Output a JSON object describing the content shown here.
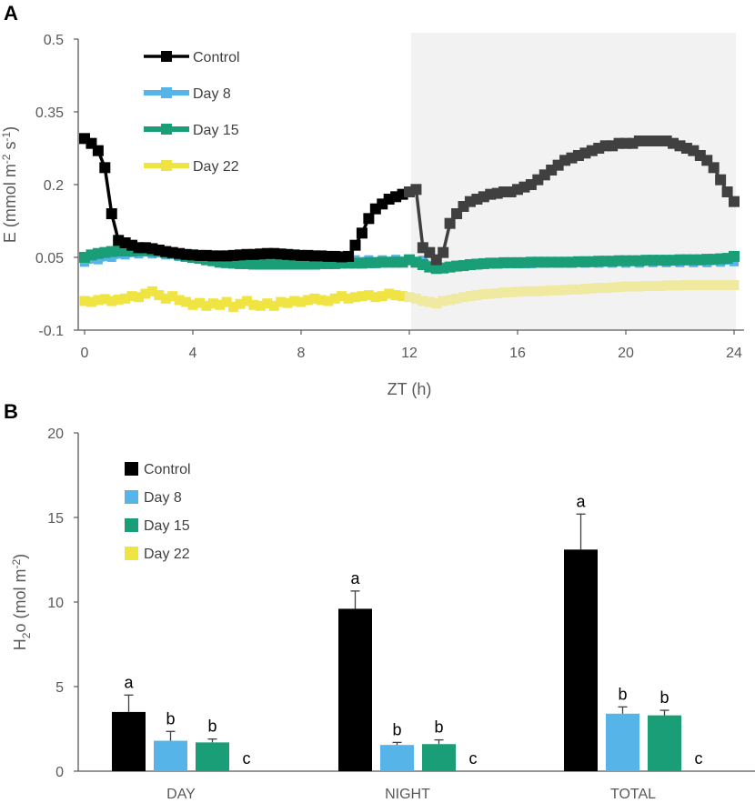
{
  "colors": {
    "control": "#000000",
    "control_dark": "#404040",
    "day8": "#56b4e9",
    "day15": "#1a9e77",
    "day22": "#f0e442",
    "day22_dark": "#f0e9a0",
    "shade": "#f2f2f2",
    "axis": "#595959"
  },
  "chart_data": [
    {
      "type": "line",
      "panel_label": "A",
      "xlabel": "ZT (h)",
      "ylabel": "E (mmol m-2 s-1)",
      "ylabel_parts": {
        "base": "E (mmol m",
        "exp1": "-2",
        "mid": " s",
        "exp2": "-1",
        "end": ")"
      },
      "xlim": [
        0,
        24
      ],
      "ylim": [
        -0.1,
        0.5
      ],
      "xticks": [
        "0",
        "4",
        "8",
        "12",
        "16",
        "20",
        "24"
      ],
      "yticks": [
        "-0.1",
        "0.05",
        "0.2",
        "0.35",
        "0.5"
      ],
      "shaded_region_zt": [
        12,
        24
      ],
      "legend": [
        "Control",
        "Day 8",
        "Day 15",
        "Day 22"
      ],
      "series": [
        {
          "name": "Control",
          "x": [
            0,
            0.25,
            0.5,
            0.75,
            1,
            1.25,
            1.5,
            1.75,
            2,
            2.25,
            2.5,
            2.75,
            3,
            3.25,
            3.5,
            3.75,
            4,
            4.25,
            4.5,
            4.75,
            5,
            5.25,
            5.5,
            5.75,
            6,
            6.25,
            6.5,
            6.75,
            7,
            7.25,
            7.5,
            7.75,
            8,
            8.25,
            8.5,
            8.75,
            9,
            9.25,
            9.5,
            9.75,
            10,
            10.25,
            10.5,
            10.75,
            11,
            11.25,
            11.5,
            11.75,
            12,
            12.25,
            12.5,
            12.75,
            13,
            13.25,
            13.5,
            13.75,
            14,
            14.25,
            14.5,
            14.75,
            15,
            15.25,
            15.5,
            15.75,
            16,
            16.25,
            16.5,
            16.75,
            17,
            17.25,
            17.5,
            17.75,
            18,
            18.25,
            18.5,
            18.75,
            19,
            19.25,
            19.5,
            19.75,
            20,
            20.25,
            20.5,
            20.75,
            21,
            21.25,
            21.5,
            21.75,
            22,
            22.25,
            22.5,
            22.75,
            23,
            23.25,
            23.5,
            23.75,
            24
          ],
          "y": [
            0.295,
            0.285,
            0.27,
            0.235,
            0.14,
            0.085,
            0.08,
            0.075,
            0.07,
            0.07,
            0.068,
            0.065,
            0.062,
            0.06,
            0.058,
            0.056,
            0.055,
            0.054,
            0.054,
            0.053,
            0.053,
            0.053,
            0.054,
            0.055,
            0.056,
            0.056,
            0.057,
            0.058,
            0.058,
            0.057,
            0.056,
            0.055,
            0.054,
            0.054,
            0.053,
            0.053,
            0.052,
            0.052,
            0.051,
            0.052,
            0.075,
            0.1,
            0.13,
            0.15,
            0.16,
            0.17,
            0.175,
            0.18,
            0.185,
            0.19,
            0.07,
            0.06,
            0.045,
            0.06,
            0.12,
            0.14,
            0.155,
            0.165,
            0.17,
            0.175,
            0.18,
            0.182,
            0.185,
            0.185,
            0.19,
            0.195,
            0.2,
            0.21,
            0.22,
            0.23,
            0.24,
            0.25,
            0.255,
            0.26,
            0.265,
            0.27,
            0.275,
            0.28,
            0.28,
            0.285,
            0.285,
            0.285,
            0.29,
            0.29,
            0.29,
            0.29,
            0.29,
            0.285,
            0.28,
            0.275,
            0.27,
            0.26,
            0.25,
            0.235,
            0.21,
            0.185,
            0.165
          ]
        },
        {
          "name": "Day 8",
          "x": [
            0,
            0.5,
            1,
            1.5,
            2,
            2.5,
            3,
            3.5,
            4,
            4.5,
            5,
            5.5,
            6,
            6.5,
            7,
            7.5,
            8,
            8.5,
            9,
            9.5,
            10,
            10.5,
            11,
            11.5,
            12,
            12.5,
            13,
            13.5,
            14,
            14.5,
            15,
            15.5,
            16,
            16.5,
            17,
            17.5,
            18,
            18.5,
            19,
            19.5,
            20,
            20.5,
            21,
            21.5,
            22,
            22.5,
            23,
            23.5,
            24
          ],
          "y": [
            0.04,
            0.045,
            0.05,
            0.055,
            0.057,
            0.057,
            0.055,
            0.052,
            0.05,
            0.047,
            0.045,
            0.043,
            0.042,
            0.042,
            0.042,
            0.042,
            0.043,
            0.043,
            0.044,
            0.044,
            0.045,
            0.045,
            0.045,
            0.046,
            0.046,
            0.044,
            0.03,
            0.032,
            0.035,
            0.036,
            0.037,
            0.037,
            0.037,
            0.037,
            0.038,
            0.038,
            0.038,
            0.038,
            0.038,
            0.038,
            0.038,
            0.038,
            0.039,
            0.039,
            0.039,
            0.039,
            0.039,
            0.04,
            0.041
          ]
        },
        {
          "name": "Day 15",
          "x": [
            0,
            0.25,
            0.5,
            0.75,
            1,
            1.25,
            1.5,
            1.75,
            2,
            2.25,
            2.5,
            2.75,
            3,
            3.25,
            3.5,
            3.75,
            4,
            4.25,
            4.5,
            4.75,
            5,
            5.25,
            5.5,
            5.75,
            6,
            6.25,
            6.5,
            6.75,
            7,
            7.25,
            7.5,
            7.75,
            8,
            8.25,
            8.5,
            8.75,
            9,
            9.25,
            9.5,
            9.75,
            10,
            10.25,
            10.5,
            10.75,
            11,
            11.25,
            11.5,
            11.75,
            12,
            12.25,
            12.5,
            12.75,
            13,
            13.25,
            13.5,
            13.75,
            14,
            14.25,
            14.5,
            14.75,
            15,
            15.25,
            15.5,
            15.75,
            16,
            16.25,
            16.5,
            16.75,
            17,
            17.25,
            17.5,
            17.75,
            18,
            18.25,
            18.5,
            18.75,
            19,
            19.25,
            19.5,
            19.75,
            20,
            20.25,
            20.5,
            20.75,
            21,
            21.25,
            21.5,
            21.75,
            22,
            22.25,
            22.5,
            22.75,
            23,
            23.25,
            23.5,
            23.75,
            24
          ],
          "y": [
            0.05,
            0.055,
            0.058,
            0.06,
            0.062,
            0.063,
            0.063,
            0.063,
            0.064,
            0.064,
            0.063,
            0.062,
            0.06,
            0.058,
            0.055,
            0.052,
            0.05,
            0.048,
            0.045,
            0.043,
            0.04,
            0.039,
            0.038,
            0.037,
            0.037,
            0.036,
            0.036,
            0.036,
            0.036,
            0.036,
            0.036,
            0.036,
            0.036,
            0.036,
            0.036,
            0.037,
            0.037,
            0.037,
            0.038,
            0.038,
            0.038,
            0.038,
            0.039,
            0.039,
            0.04,
            0.04,
            0.04,
            0.04,
            0.045,
            0.04,
            0.035,
            0.03,
            0.027,
            0.028,
            0.03,
            0.032,
            0.033,
            0.035,
            0.036,
            0.037,
            0.038,
            0.038,
            0.039,
            0.039,
            0.039,
            0.039,
            0.04,
            0.04,
            0.04,
            0.04,
            0.04,
            0.04,
            0.04,
            0.041,
            0.041,
            0.041,
            0.042,
            0.042,
            0.042,
            0.043,
            0.043,
            0.043,
            0.043,
            0.044,
            0.044,
            0.044,
            0.044,
            0.044,
            0.045,
            0.045,
            0.045,
            0.045,
            0.046,
            0.046,
            0.047,
            0.048,
            0.052
          ]
        },
        {
          "name": "Day 22",
          "x": [
            0,
            0.25,
            0.5,
            0.75,
            1,
            1.25,
            1.5,
            1.75,
            2,
            2.25,
            2.5,
            2.75,
            3,
            3.25,
            3.5,
            3.75,
            4,
            4.25,
            4.5,
            4.75,
            5,
            5.25,
            5.5,
            5.75,
            6,
            6.25,
            6.5,
            6.75,
            7,
            7.25,
            7.5,
            7.75,
            8,
            8.25,
            8.5,
            8.75,
            9,
            9.25,
            9.5,
            9.75,
            10,
            10.25,
            10.5,
            10.75,
            11,
            11.25,
            11.5,
            11.75,
            12,
            12.25,
            12.5,
            12.75,
            13,
            13.25,
            13.5,
            13.75,
            14,
            14.25,
            14.5,
            14.75,
            15,
            15.25,
            15.5,
            15.75,
            16,
            16.25,
            16.5,
            16.75,
            17,
            17.25,
            17.5,
            17.75,
            18,
            18.25,
            18.5,
            18.75,
            19,
            19.25,
            19.5,
            19.75,
            20,
            20.25,
            20.5,
            20.75,
            21,
            21.25,
            21.5,
            21.75,
            22,
            22.25,
            22.5,
            22.75,
            23,
            23.25,
            23.5,
            23.75,
            24
          ],
          "y": [
            -0.04,
            -0.042,
            -0.038,
            -0.036,
            -0.04,
            -0.037,
            -0.035,
            -0.03,
            -0.032,
            -0.025,
            -0.02,
            -0.028,
            -0.035,
            -0.03,
            -0.038,
            -0.042,
            -0.048,
            -0.044,
            -0.05,
            -0.045,
            -0.048,
            -0.042,
            -0.052,
            -0.046,
            -0.04,
            -0.048,
            -0.05,
            -0.045,
            -0.05,
            -0.042,
            -0.044,
            -0.04,
            -0.042,
            -0.038,
            -0.035,
            -0.038,
            -0.04,
            -0.035,
            -0.03,
            -0.035,
            -0.032,
            -0.03,
            -0.028,
            -0.032,
            -0.03,
            -0.025,
            -0.028,
            -0.03,
            -0.032,
            -0.035,
            -0.04,
            -0.042,
            -0.045,
            -0.04,
            -0.038,
            -0.035,
            -0.032,
            -0.03,
            -0.028,
            -0.026,
            -0.025,
            -0.024,
            -0.022,
            -0.022,
            -0.021,
            -0.02,
            -0.02,
            -0.02,
            -0.019,
            -0.018,
            -0.018,
            -0.017,
            -0.016,
            -0.016,
            -0.015,
            -0.014,
            -0.013,
            -0.013,
            -0.012,
            -0.011,
            -0.01,
            -0.01,
            -0.01,
            -0.009,
            -0.009,
            -0.009,
            -0.008,
            -0.008,
            -0.008,
            -0.007,
            -0.007,
            -0.007,
            -0.007,
            -0.007,
            -0.007,
            -0.007,
            -0.007
          ]
        }
      ]
    },
    {
      "type": "bar",
      "panel_label": "B",
      "ylabel": "H2o (mol m-2)",
      "ylabel_parts": {
        "h": "H",
        "sub": "2",
        "mid": "o (mol m",
        "exp": "-2",
        "end": ")"
      },
      "ylim": [
        0,
        20
      ],
      "yticks": [
        "0",
        "5",
        "10",
        "15",
        "20"
      ],
      "categories": [
        "DAY",
        "NIGHT",
        "TOTAL"
      ],
      "legend": [
        "Control",
        "Day 8",
        "Day 15",
        "Day 22"
      ],
      "series": [
        {
          "name": "Control",
          "values": [
            3.5,
            9.6,
            13.1
          ],
          "errors": [
            1.0,
            1.05,
            2.1
          ],
          "letters": [
            "a",
            "a",
            "a"
          ]
        },
        {
          "name": "Day 8",
          "values": [
            1.8,
            1.55,
            3.4
          ],
          "errors": [
            0.55,
            0.15,
            0.4
          ],
          "letters": [
            "b",
            "b",
            "b"
          ]
        },
        {
          "name": "Day 15",
          "values": [
            1.7,
            1.6,
            3.3
          ],
          "errors": [
            0.2,
            0.25,
            0.3
          ],
          "letters": [
            "b",
            "b",
            "b"
          ]
        },
        {
          "name": "Day 22",
          "values": [
            0,
            0,
            0
          ],
          "errors": [
            0,
            0,
            0
          ],
          "letters": [
            "c",
            "c",
            "c"
          ]
        }
      ]
    }
  ]
}
